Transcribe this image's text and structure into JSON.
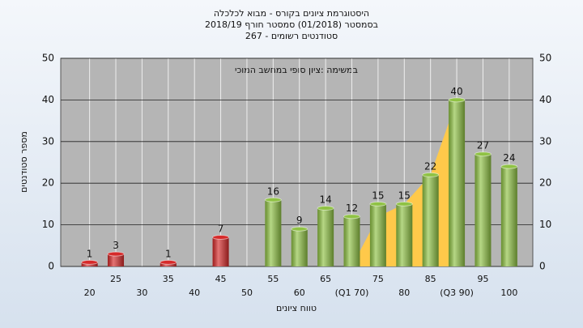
{
  "chart_data": {
    "type": "bar",
    "title": [
      "היסטוגרמת ציונים בקורס - מבוא לכלכלה",
      "בסמסטר  (01/2018)  סמסטר חורף 2018/19",
      "סטודנטים רשומים - 267"
    ],
    "annotation": "במשימה :ציון סופי במחשב המוכי",
    "y_label": "מספר סטודנטים",
    "x_label": "טווח ציונים",
    "x": [
      20,
      25,
      30,
      35,
      40,
      45,
      50,
      55,
      60,
      65,
      70,
      75,
      80,
      85,
      90,
      95,
      100
    ],
    "values": [
      1,
      3,
      null,
      1,
      null,
      7,
      null,
      16,
      9,
      14,
      12,
      15,
      15,
      22,
      40,
      27,
      24
    ],
    "colors": [
      "#d62a2a",
      "#d62a2a",
      "#d62a2a",
      "#d62a2a",
      "#d62a2a",
      "#d62a2a",
      "#d62a2a",
      "#8fc244",
      "#8fc244",
      "#8fc244",
      "#8fc244",
      "#8fc244",
      "#8fc244",
      "#8fc244",
      "#8fc244",
      "#8fc244",
      "#8fc244"
    ],
    "area": {
      "color": "#ffc94a",
      "x": [
        70,
        75,
        80,
        85,
        90
      ],
      "values": [
        0,
        12,
        15,
        22,
        40
      ]
    },
    "xlim": [
      14.5,
      104.5
    ],
    "xticks": [
      20,
      25,
      30,
      35,
      40,
      45,
      50,
      55,
      60,
      65,
      {
        "value": 70,
        "label": "(Q1 70)"
      },
      75,
      80,
      85,
      {
        "value": 90,
        "label": "(Q3 90)"
      },
      95,
      100
    ],
    "ylim": [
      0,
      50
    ],
    "yticks": [
      0,
      10,
      20,
      30,
      40,
      50
    ],
    "grid": true
  }
}
